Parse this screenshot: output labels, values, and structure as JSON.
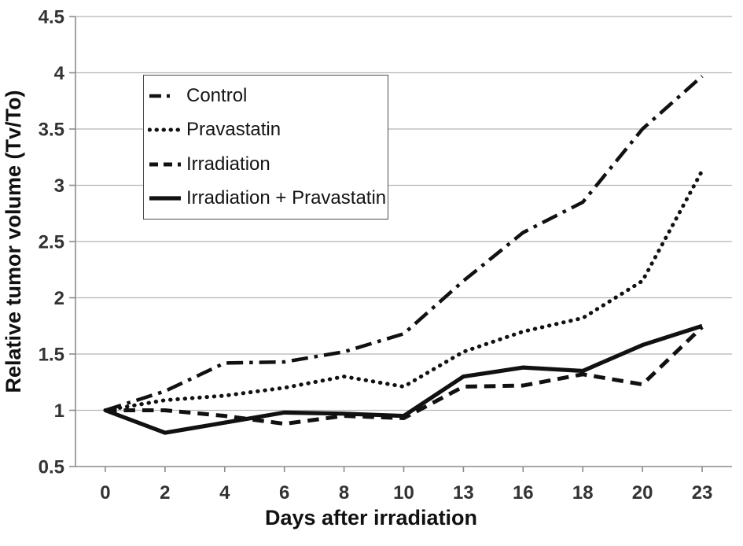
{
  "chart_data": {
    "type": "line",
    "title": "",
    "xlabel": "Days after irradiation",
    "ylabel": "Relative tumor volume (Tv/To)",
    "categories": [
      0,
      2,
      4,
      6,
      8,
      10,
      13,
      16,
      18,
      20,
      23
    ],
    "x_tick_labels": [
      "0",
      "2",
      "4",
      "6",
      "8",
      "10",
      "13",
      "16",
      "18",
      "20",
      "23"
    ],
    "y_ticks": [
      0.5,
      1,
      1.5,
      2,
      2.5,
      3,
      3.5,
      4,
      4.5
    ],
    "y_tick_labels": [
      "0.5",
      "1",
      "1.5",
      "2",
      "2.5",
      "3",
      "3.5",
      "4",
      "4.5"
    ],
    "ylim": [
      0.5,
      4.5
    ],
    "grid": "horizontal",
    "legend_position": "top-left-inside",
    "series": [
      {
        "name": "Control",
        "style": "dashdot",
        "values": [
          1.0,
          1.17,
          1.42,
          1.43,
          1.52,
          1.68,
          2.15,
          2.58,
          2.85,
          3.5,
          3.97
        ]
      },
      {
        "name": "Pravastatin",
        "style": "dotted",
        "values": [
          1.0,
          1.09,
          1.13,
          1.2,
          1.3,
          1.21,
          1.52,
          1.7,
          1.82,
          2.15,
          3.13
        ]
      },
      {
        "name": "Irradiation",
        "style": "dashed",
        "values": [
          1.0,
          1.0,
          0.95,
          0.88,
          0.95,
          0.93,
          1.21,
          1.22,
          1.32,
          1.23,
          1.74
        ]
      },
      {
        "name": "Irradiation + Pravastatin",
        "style": "solid",
        "values": [
          1.0,
          0.8,
          0.89,
          0.98,
          0.97,
          0.95,
          1.3,
          1.38,
          1.35,
          1.58,
          1.75
        ]
      }
    ],
    "colors": {
      "line": "#111111",
      "gridline": "#b4b4b4",
      "axis": "#8c8c8c",
      "tick_label": "#333333",
      "legend_border": "#4a4a4a",
      "background": "#ffffff"
    }
  }
}
